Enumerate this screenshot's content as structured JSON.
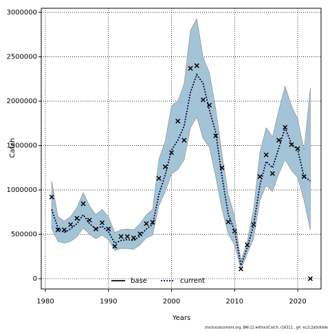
{
  "chart_data": {
    "type": "line",
    "x_label": "Years",
    "y_label": "Catch",
    "footer": "stockassessment.org, BW-22-withoutCatch, r16311 , git: ec2c2a0c6dde",
    "x": [
      1981,
      1982,
      1983,
      1984,
      1985,
      1986,
      1987,
      1988,
      1989,
      1990,
      1991,
      1992,
      1993,
      1994,
      1995,
      1996,
      1997,
      1998,
      1999,
      2000,
      2001,
      2002,
      2003,
      2004,
      2005,
      2006,
      2007,
      2008,
      2009,
      2010,
      2011,
      2012,
      2013,
      2014,
      2015,
      2016,
      2017,
      2018,
      2019,
      2020,
      2021,
      2022
    ],
    "series": [
      {
        "name": "current",
        "color": "#000033",
        "dash": "dotted",
        "values": [
          780000,
          570000,
          520000,
          560000,
          620000,
          720000,
          620000,
          560000,
          590000,
          530000,
          400000,
          430000,
          440000,
          430000,
          480000,
          560000,
          610000,
          950000,
          1170000,
          1450000,
          1560000,
          1720000,
          2100000,
          2300000,
          2200000,
          1900000,
          1650000,
          1150000,
          720000,
          540000,
          150000,
          350000,
          600000,
          1050000,
          1320000,
          1250000,
          1470000,
          1700000,
          1520000,
          1450000,
          1150000,
          1100000
        ],
        "upper": [
          1100000,
          700000,
          650000,
          700000,
          800000,
          970000,
          820000,
          720000,
          780000,
          700000,
          520000,
          550000,
          560000,
          550000,
          620000,
          720000,
          780000,
          1350000,
          1550000,
          1950000,
          2000000,
          2200000,
          2800000,
          2930000,
          2500000,
          2320000,
          1920000,
          1400000,
          950000,
          700000,
          200000,
          420000,
          780000,
          1420000,
          1700000,
          1600000,
          1900000,
          2170000,
          1950000,
          1800000,
          1450000,
          2150000
        ],
        "lower": [
          560000,
          420000,
          400000,
          420000,
          470000,
          570000,
          500000,
          450000,
          490000,
          440000,
          320000,
          340000,
          340000,
          330000,
          380000,
          460000,
          490000,
          820000,
          980000,
          1180000,
          1230000,
          1340000,
          1700000,
          1820000,
          1580000,
          1480000,
          1150000,
          780000,
          500000,
          380000,
          100000,
          280000,
          450000,
          880000,
          1050000,
          980000,
          1180000,
          1340000,
          1220000,
          1140000,
          880000,
          550000
        ],
        "band_color": "#a3c4d6"
      }
    ],
    "observations": [
      920000,
      550000,
      550000,
      610000,
      680000,
      845000,
      660000,
      560000,
      630000,
      560000,
      365000,
      475000,
      475000,
      460000,
      505000,
      620000,
      635000,
      1130000,
      1260000,
      1420000,
      1775000,
      1560000,
      2370000,
      2400000,
      2015000,
      1955000,
      1610000,
      1250000,
      640000,
      535000,
      110000,
      380000,
      610000,
      1150000,
      1395000,
      1185000,
      1560000,
      1705000,
      1510000,
      1465000,
      1150000,
      0
    ],
    "legend": [
      {
        "name": "base",
        "color": "#000000",
        "dash": "solid"
      },
      {
        "name": "current",
        "color": "#000033",
        "dash": "dotted"
      }
    ],
    "xlim": [
      1979.35,
      2023.7
    ],
    "xticks": [
      1980,
      1990,
      2000,
      2010,
      2020
    ],
    "ylim": [
      -116000,
      3047000
    ],
    "yticks": [
      0,
      500000,
      1000000,
      1500000,
      2000000,
      2500000,
      3000000
    ],
    "grid": true
  }
}
